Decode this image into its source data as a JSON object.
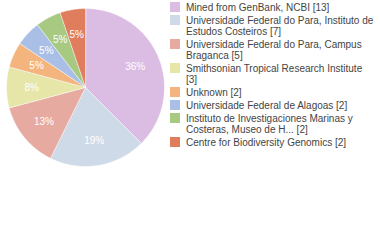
{
  "chart_data": {
    "type": "pie",
    "categories": [
      "Mined from GenBank, NCBI [13]",
      "Universidade Federal do Para, Instituto de Estudos Costeiros [7]",
      "Universidade Federal do Para, Campus Braganca [5]",
      "Smithsonian Tropical Research Institute [3]",
      "Unknown [2]",
      "Universidade Federal de Alagoas [2]",
      "Instituto de Investigaciones Marinas y Costeras, Museo de H... [2]",
      "Centre for Biodiversity Genomics [2]"
    ],
    "values": [
      36,
      19,
      13,
      8,
      5,
      5,
      5,
      5
    ],
    "value_labels": [
      "36%",
      "19%",
      "13%",
      "8%",
      "5%",
      "5%",
      "5%",
      "5%"
    ],
    "colors": [
      "#dbbde3",
      "#cfdae8",
      "#e7aaa1",
      "#e5e6a8",
      "#f3b47d",
      "#a9bfe6",
      "#a8c981",
      "#e07d5d"
    ],
    "data_labels": true,
    "legend": "right"
  }
}
